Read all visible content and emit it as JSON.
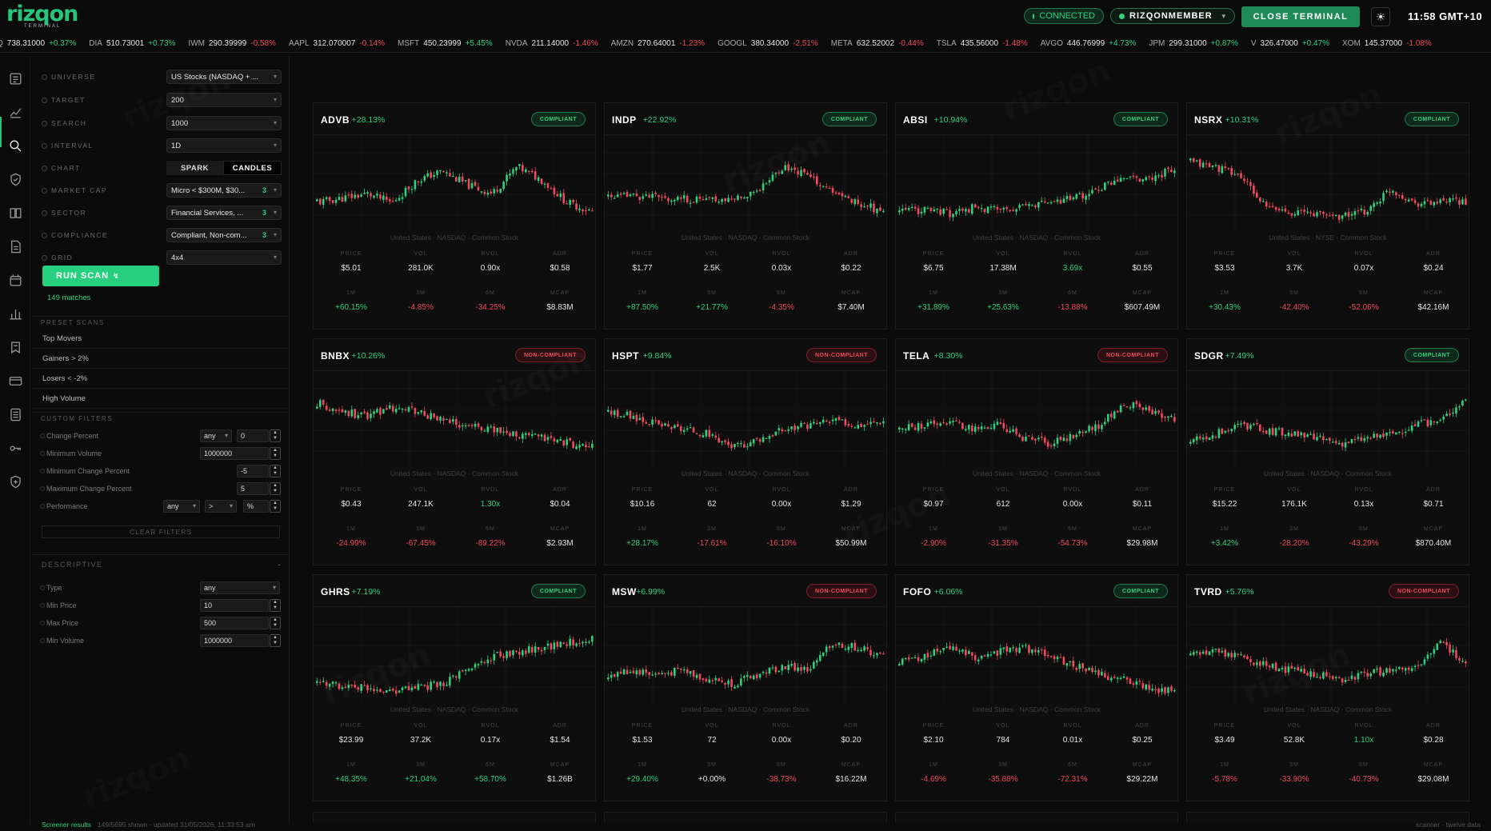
{
  "brand": {
    "name": "rizqon",
    "sub": "TERMINAL"
  },
  "header": {
    "connected": "CONNECTED",
    "member": "RIZQONMEMBER",
    "close_label": "CLOSE TERMINAL",
    "clock": "11:58 GMT+10"
  },
  "ticker": [
    {
      "sym": "Q",
      "px": "738.31000",
      "chg": "+0.37%",
      "up": true
    },
    {
      "sym": "DIA",
      "px": "510.73001",
      "chg": "+0.73%",
      "up": true
    },
    {
      "sym": "IWM",
      "px": "290.39999",
      "chg": "-0.58%",
      "up": false
    },
    {
      "sym": "AAPL",
      "px": "312.070007",
      "chg": "-0.14%",
      "up": false
    },
    {
      "sym": "MSFT",
      "px": "450.23999",
      "chg": "+5.45%",
      "up": true
    },
    {
      "sym": "NVDA",
      "px": "211.14000",
      "chg": "-1.46%",
      "up": false
    },
    {
      "sym": "AMZN",
      "px": "270.64001",
      "chg": "-1.23%",
      "up": false
    },
    {
      "sym": "GOOGL",
      "px": "380.34000",
      "chg": "-2.51%",
      "up": false
    },
    {
      "sym": "META",
      "px": "632.52002",
      "chg": "-0.44%",
      "up": false
    },
    {
      "sym": "TSLA",
      "px": "435.56000",
      "chg": "-1.48%",
      "up": false
    },
    {
      "sym": "AVGO",
      "px": "446.76999",
      "chg": "+4.73%",
      "up": true
    },
    {
      "sym": "JPM",
      "px": "299.31000",
      "chg": "+0.87%",
      "up": true
    },
    {
      "sym": "V",
      "px": "326.47000",
      "chg": "+0.47%",
      "up": true
    },
    {
      "sym": "XOM",
      "px": "145.37000",
      "chg": "-1.08%",
      "up": false
    }
  ],
  "rail_icons": [
    "news-icon",
    "chart-line-icon",
    "search-icon",
    "shield-icon",
    "book-icon",
    "document-icon",
    "calendar-icon",
    "bar-chart-icon",
    "bookmark-icon",
    "card-icon",
    "list-icon",
    "key-icon",
    "shield-plus-icon"
  ],
  "filters": {
    "universe": {
      "label": "UNIVERSE",
      "value": "US Stocks (NASDAQ + ..."
    },
    "target": {
      "label": "TARGET",
      "value": "200"
    },
    "search": {
      "label": "SEARCH",
      "value": "1000"
    },
    "interval": {
      "label": "INTERVAL",
      "value": "1D"
    },
    "chart": {
      "label": "CHART",
      "spark": "SPARK",
      "candles": "CANDLES"
    },
    "market_cap": {
      "label": "MARKET CAP",
      "value": "Micro < $300M, $30...",
      "count": "3"
    },
    "sector": {
      "label": "SECTOR",
      "value": "Financial Services, ...",
      "count": "3"
    },
    "compliance": {
      "label": "COMPLIANCE",
      "value": "Compliant, Non-com...",
      "count": "3"
    },
    "grid": {
      "label": "GRID",
      "value": "4x4"
    }
  },
  "run_scan": "RUN SCAN",
  "matches": "149 matches",
  "preset_head": "PRESET SCANS",
  "presets": [
    "Top Movers",
    "Gainers > 2%",
    "Losers < -2%",
    "High Volume"
  ],
  "custom_head": "CUSTOM FILTERS",
  "custom": {
    "change_percent": {
      "label": "Change Percent",
      "op": "any",
      "val": "0"
    },
    "min_volume": {
      "label": "Minimum Volume",
      "val": "1000000"
    },
    "min_change": {
      "label": "Minimum Change Percent",
      "val": "-5"
    },
    "max_change": {
      "label": "Maximum Change Percent",
      "val": "5"
    },
    "performance": {
      "label": "Performance",
      "op": "any",
      "op2": ">",
      "unit": "%"
    }
  },
  "clear_filters": "CLEAR FILTERS",
  "descriptive": {
    "head": "DESCRIPTIVE",
    "toggle": "-",
    "type": {
      "label": "Type",
      "val": "any"
    },
    "min_price": {
      "label": "Min Price",
      "val": "10"
    },
    "max_price": {
      "label": "Max Price",
      "val": "500"
    },
    "min_volume": {
      "label": "Min Volume",
      "val": "1000000"
    }
  },
  "status": {
    "left_green": "Screener results",
    "left": "149/5695 shown · updated 31/05/2026, 11:33:53 am",
    "right": "scanner · twelve data"
  },
  "metric_labels": {
    "price": "PRICE",
    "vol": "VOL",
    "rvol": "RVOL",
    "adr": "ADR",
    "m1": "1M",
    "m3": "3M",
    "m6": "6M",
    "mcap": "MCAP"
  },
  "colors": {
    "green": "#2fd07f",
    "red": "#ef4a5d",
    "accent": "#27c47a"
  },
  "cards": [
    {
      "sym": "ADVB",
      "chg": "+28.13%",
      "status": "COMPLIANT",
      "ok": true,
      "meta": "United States · NASDAQ · Common Stock",
      "price": "$5.01",
      "vol": "281.0K",
      "rvol": "0.90x",
      "rvol_c": "w",
      "adr": "$0.58",
      "m1": "+60.15%",
      "m3": "-4.85%",
      "m6": "-34.25%",
      "mcap": "$8.83M",
      "seed": 11,
      "trend": [
        0.3,
        0.35,
        0.4,
        0.3,
        0.55,
        0.65,
        0.5,
        0.4,
        0.7,
        0.55,
        0.3,
        0.2
      ]
    },
    {
      "sym": "INDP",
      "chg": "+22.92%",
      "status": "COMPLIANT",
      "ok": true,
      "meta": "United States · NASDAQ · Common Stock",
      "price": "$1.77",
      "vol": "2.5K",
      "rvol": "0.03x",
      "rvol_c": "w",
      "adr": "$0.22",
      "m1": "+87.50%",
      "m3": "+21.77%",
      "m6": "-4.35%",
      "mcap": "$7.40M",
      "seed": 23,
      "trend": [
        0.35,
        0.38,
        0.36,
        0.34,
        0.33,
        0.34,
        0.45,
        0.7,
        0.6,
        0.4,
        0.3,
        0.2
      ]
    },
    {
      "sym": "ABSI",
      "chg": "+10.94%",
      "status": "COMPLIANT",
      "ok": true,
      "meta": "United States · NASDAQ · Common Stock",
      "price": "$6.75",
      "vol": "17.38M",
      "rvol": "3.69x",
      "rvol_c": "p",
      "adr": "$0.55",
      "m1": "+31.89%",
      "m3": "+25.63%",
      "m6": "-13.88%",
      "mcap": "$607.49M",
      "seed": 37,
      "trend": [
        0.2,
        0.22,
        0.18,
        0.25,
        0.22,
        0.25,
        0.3,
        0.35,
        0.45,
        0.6,
        0.55,
        0.7
      ]
    },
    {
      "sym": "NSRX",
      "chg": "+10.31%",
      "status": "COMPLIANT",
      "ok": true,
      "meta": "United States · NYSE · Common Stock",
      "price": "$3.53",
      "vol": "3.7K",
      "rvol": "0.07x",
      "rvol_c": "w",
      "adr": "$0.24",
      "m1": "+30.43%",
      "m3": "-42.40%",
      "m6": "-52.06%",
      "mcap": "$42.16M",
      "seed": 41,
      "trend": [
        0.75,
        0.7,
        0.6,
        0.25,
        0.2,
        0.18,
        0.15,
        0.2,
        0.45,
        0.3,
        0.3,
        0.32
      ]
    },
    {
      "sym": "BNBX",
      "chg": "+10.26%",
      "status": "NON-COMPLIANT",
      "ok": false,
      "meta": "United States · NASDAQ · Common Stock",
      "price": "$0.43",
      "vol": "247.1K",
      "rvol": "1.30x",
      "rvol_c": "p",
      "adr": "$0.04",
      "m1": "-24.99%",
      "m3": "-67.45%",
      "m6": "-89.22%",
      "mcap": "$2.93M",
      "seed": 53,
      "trend": [
        0.7,
        0.6,
        0.55,
        0.65,
        0.6,
        0.5,
        0.45,
        0.4,
        0.35,
        0.3,
        0.25,
        0.2
      ]
    },
    {
      "sym": "HSPT",
      "chg": "+9.84%",
      "status": "NON-COMPLIANT",
      "ok": false,
      "meta": "United States · NASDAQ · Common Stock",
      "price": "$10.16",
      "vol": "62",
      "rvol": "0.00x",
      "rvol_c": "w",
      "adr": "$1.29",
      "m1": "+28.17%",
      "m3": "-17.61%",
      "m6": "-16.10%",
      "mcap": "$50.99M",
      "seed": 67,
      "trend": [
        0.6,
        0.55,
        0.45,
        0.4,
        0.35,
        0.2,
        0.3,
        0.4,
        0.45,
        0.5,
        0.45,
        0.5
      ]
    },
    {
      "sym": "TELA",
      "chg": "+8.30%",
      "status": "NON-COMPLIANT",
      "ok": false,
      "meta": "United States · NASDAQ · Common Stock",
      "price": "$0.97",
      "vol": "612",
      "rvol": "0.00x",
      "rvol_c": "w",
      "adr": "$0.11",
      "m1": "-2.90%",
      "m3": "-31.35%",
      "m6": "-54.73%",
      "mcap": "$29.98M",
      "seed": 79,
      "trend": [
        0.4,
        0.45,
        0.5,
        0.4,
        0.45,
        0.3,
        0.25,
        0.35,
        0.45,
        0.7,
        0.6,
        0.5
      ]
    },
    {
      "sym": "SDGR",
      "chg": "+7.49%",
      "status": "COMPLIANT",
      "ok": true,
      "meta": "United States · NASDAQ · Common Stock",
      "price": "$15.22",
      "vol": "176.1K",
      "rvol": "0.13x",
      "rvol_c": "w",
      "adr": "$0.71",
      "m1": "+3.42%",
      "m3": "-28.20%",
      "m6": "-43.29%",
      "mcap": "$870.40M",
      "seed": 83,
      "trend": [
        0.3,
        0.35,
        0.45,
        0.4,
        0.35,
        0.3,
        0.25,
        0.3,
        0.35,
        0.45,
        0.5,
        0.75
      ]
    },
    {
      "sym": "GHRS",
      "chg": "+7.19%",
      "status": "COMPLIANT",
      "ok": true,
      "meta": "United States · NASDAQ · Common Stock",
      "price": "$23.99",
      "vol": "37.2K",
      "rvol": "0.17x",
      "rvol_c": "w",
      "adr": "$1.54",
      "m1": "+48.35%",
      "m3": "+21.04%",
      "m6": "+58.70%",
      "mcap": "$1.26B",
      "seed": 97,
      "trend": [
        0.2,
        0.18,
        0.15,
        0.12,
        0.15,
        0.2,
        0.35,
        0.5,
        0.55,
        0.6,
        0.65,
        0.7
      ]
    },
    {
      "sym": "MSW",
      "chg": "+6.99%",
      "status": "NON-COMPLIANT",
      "ok": false,
      "meta": "United States · NASDAQ · Common Stock",
      "price": "$1.53",
      "vol": "72",
      "rvol": "0.00x",
      "rvol_c": "w",
      "adr": "$0.20",
      "m1": "+29.40%",
      "m3": "+0.00%",
      "m6": "-38.73%",
      "mcap": "$16.22M",
      "seed": 101,
      "trend": [
        0.3,
        0.35,
        0.3,
        0.35,
        0.25,
        0.2,
        0.3,
        0.4,
        0.35,
        0.65,
        0.6,
        0.5
      ]
    },
    {
      "sym": "FOFO",
      "chg": "+6.06%",
      "status": "COMPLIANT",
      "ok": true,
      "meta": "United States · NASDAQ · Common Stock",
      "price": "$2.10",
      "vol": "784",
      "rvol": "0.01x",
      "rvol_c": "w",
      "adr": "$0.25",
      "m1": "-4.69%",
      "m3": "-35.88%",
      "m6": "-72.31%",
      "mcap": "$29.22M",
      "seed": 113,
      "trend": [
        0.45,
        0.5,
        0.6,
        0.5,
        0.55,
        0.6,
        0.5,
        0.4,
        0.3,
        0.25,
        0.15,
        0.1
      ]
    },
    {
      "sym": "TVRD",
      "chg": "+5.76%",
      "status": "NON-COMPLIANT",
      "ok": false,
      "meta": "United States · NASDAQ · Common Stock",
      "price": "$3.49",
      "vol": "52.8K",
      "rvol": "1.10x",
      "rvol_c": "p",
      "adr": "$0.28",
      "m1": "-5.78%",
      "m3": "-33.90%",
      "m6": "-40.73%",
      "mcap": "$29.08M",
      "seed": 127,
      "trend": [
        0.5,
        0.55,
        0.5,
        0.4,
        0.35,
        0.3,
        0.25,
        0.3,
        0.35,
        0.4,
        0.65,
        0.45
      ]
    }
  ]
}
